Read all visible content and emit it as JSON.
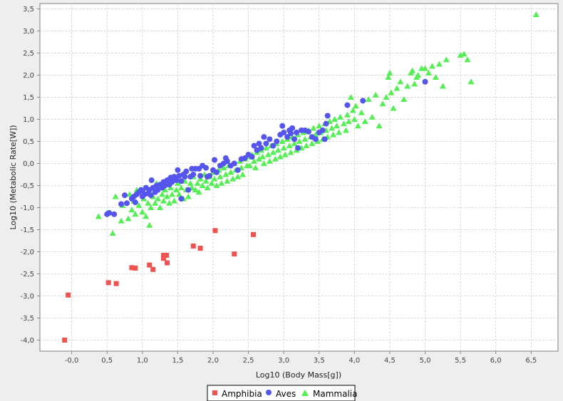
{
  "chart_data": {
    "type": "scatter",
    "xlabel": "Log10 (Body Mass[g])",
    "ylabel": "Log10 (Metabolic Rate[W])",
    "xlim": [
      -0.45,
      6.88
    ],
    "ylim": [
      -4.25,
      3.62
    ],
    "x_ticks": [
      "-0,0",
      "0,5",
      "1,0",
      "1,5",
      "2,0",
      "2,5",
      "3,0",
      "3,5",
      "4,0",
      "4,5",
      "5,0",
      "5,5",
      "6,0",
      "6,5"
    ],
    "x_tick_values": [
      0,
      0.5,
      1,
      1.5,
      2,
      2.5,
      3,
      3.5,
      4,
      4.5,
      5,
      5.5,
      6,
      6.5
    ],
    "y_ticks": [
      "-4,0",
      "-3,5",
      "-3,0",
      "-2,5",
      "-2,0",
      "-1,5",
      "-1,0",
      "-0,5",
      "0,0",
      "0,5",
      "1,0",
      "1,5",
      "2,0",
      "2,5",
      "3,0",
      "3,5"
    ],
    "y_tick_values": [
      -4,
      -3.5,
      -3,
      -2.5,
      -2,
      -1.5,
      -1,
      -0.5,
      0,
      0.5,
      1,
      1.5,
      2,
      2.5,
      3,
      3.5
    ],
    "grid": true,
    "legend_position": "bottom",
    "series": [
      {
        "name": "Amphibia",
        "marker": "square",
        "color": "#ef5350",
        "points": [
          [
            -0.1,
            -4.0
          ],
          [
            -0.05,
            -2.98
          ],
          [
            0.52,
            -2.7
          ],
          [
            0.63,
            -2.72
          ],
          [
            0.85,
            -2.36
          ],
          [
            0.9,
            -2.37
          ],
          [
            1.1,
            -2.3
          ],
          [
            1.15,
            -2.4
          ],
          [
            1.3,
            -2.08
          ],
          [
            1.3,
            -2.15
          ],
          [
            1.34,
            -2.08
          ],
          [
            1.35,
            -2.25
          ],
          [
            1.72,
            -1.87
          ],
          [
            1.82,
            -1.92
          ],
          [
            2.03,
            -1.52
          ],
          [
            2.3,
            -2.05
          ],
          [
            2.57,
            -1.61
          ]
        ]
      },
      {
        "name": "Aves",
        "marker": "circle",
        "color": "#5555ee",
        "points": [
          [
            0.5,
            -1.15
          ],
          [
            0.53,
            -1.12
          ],
          [
            0.6,
            -1.15
          ],
          [
            0.7,
            -0.92
          ],
          [
            0.75,
            -0.72
          ],
          [
            0.78,
            -0.9
          ],
          [
            0.85,
            -0.8
          ],
          [
            0.88,
            -0.75
          ],
          [
            0.9,
            -0.88
          ],
          [
            0.92,
            -0.7
          ],
          [
            0.95,
            -0.65
          ],
          [
            0.98,
            -0.6
          ],
          [
            1.0,
            -0.75
          ],
          [
            1.0,
            -0.62
          ],
          [
            1.03,
            -0.7
          ],
          [
            1.05,
            -0.55
          ],
          [
            1.08,
            -0.68
          ],
          [
            1.1,
            -0.6
          ],
          [
            1.12,
            -0.72
          ],
          [
            1.13,
            -0.38
          ],
          [
            1.15,
            -0.55
          ],
          [
            1.18,
            -0.65
          ],
          [
            1.2,
            -0.5
          ],
          [
            1.22,
            -0.6
          ],
          [
            1.25,
            -0.48
          ],
          [
            1.28,
            -0.55
          ],
          [
            1.3,
            -0.42
          ],
          [
            1.32,
            -0.5
          ],
          [
            1.35,
            -0.38
          ],
          [
            1.38,
            -0.48
          ],
          [
            1.4,
            -0.32
          ],
          [
            1.42,
            -0.42
          ],
          [
            1.45,
            -0.3
          ],
          [
            1.48,
            -0.38
          ],
          [
            1.5,
            -0.15
          ],
          [
            1.52,
            -0.28
          ],
          [
            1.55,
            -0.4
          ],
          [
            1.55,
            -0.8
          ],
          [
            1.58,
            -0.25
          ],
          [
            1.6,
            -0.3
          ],
          [
            1.62,
            -0.18
          ],
          [
            1.65,
            -0.6
          ],
          [
            1.68,
            -0.3
          ],
          [
            1.7,
            -0.12
          ],
          [
            1.72,
            -0.25
          ],
          [
            1.75,
            -0.12
          ],
          [
            1.8,
            -0.12
          ],
          [
            1.82,
            -0.28
          ],
          [
            1.85,
            -0.05
          ],
          [
            1.9,
            -0.1
          ],
          [
            1.92,
            -0.3
          ],
          [
            1.95,
            -0.28
          ],
          [
            2.0,
            -0.15
          ],
          [
            2.02,
            0.08
          ],
          [
            2.05,
            -0.2
          ],
          [
            2.1,
            -0.05
          ],
          [
            2.15,
            0.0
          ],
          [
            2.18,
            0.12
          ],
          [
            2.2,
            0.05
          ],
          [
            2.25,
            -0.05
          ],
          [
            2.3,
            0.0
          ],
          [
            2.35,
            -0.15
          ],
          [
            2.4,
            0.1
          ],
          [
            2.45,
            0.12
          ],
          [
            2.5,
            0.2
          ],
          [
            2.55,
            0.15
          ],
          [
            2.58,
            0.4
          ],
          [
            2.62,
            0.3
          ],
          [
            2.65,
            0.45
          ],
          [
            2.68,
            0.35
          ],
          [
            2.72,
            0.6
          ],
          [
            2.75,
            0.45
          ],
          [
            2.8,
            0.55
          ],
          [
            2.85,
            0.4
          ],
          [
            2.9,
            0.5
          ],
          [
            2.95,
            0.65
          ],
          [
            2.98,
            0.85
          ],
          [
            3.0,
            0.7
          ],
          [
            3.05,
            0.6
          ],
          [
            3.08,
            0.75
          ],
          [
            3.1,
            0.68
          ],
          [
            3.12,
            0.8
          ],
          [
            3.15,
            0.55
          ],
          [
            3.18,
            0.7
          ],
          [
            3.2,
            0.35
          ],
          [
            3.25,
            0.75
          ],
          [
            3.3,
            0.75
          ],
          [
            3.35,
            0.72
          ],
          [
            3.4,
            0.6
          ],
          [
            3.45,
            0.55
          ],
          [
            3.5,
            0.7
          ],
          [
            3.55,
            0.75
          ],
          [
            3.58,
            0.55
          ],
          [
            3.6,
            0.9
          ],
          [
            3.62,
            1.08
          ],
          [
            3.9,
            1.32
          ],
          [
            4.12,
            1.42
          ],
          [
            5.0,
            1.85
          ]
        ]
      },
      {
        "name": "Mammalia",
        "marker": "triangle",
        "color": "#55ee55",
        "points": [
          [
            0.38,
            -1.2
          ],
          [
            0.5,
            -1.12
          ],
          [
            0.58,
            -1.58
          ],
          [
            0.62,
            -0.75
          ],
          [
            0.7,
            -1.3
          ],
          [
            0.72,
            -0.95
          ],
          [
            0.8,
            -1.25
          ],
          [
            0.82,
            -0.7
          ],
          [
            0.85,
            -1.05
          ],
          [
            0.88,
            -0.85
          ],
          [
            0.9,
            -1.15
          ],
          [
            0.92,
            -0.6
          ],
          [
            0.95,
            -0.95
          ],
          [
            1.0,
            -1.1
          ],
          [
            1.02,
            -0.8
          ],
          [
            1.05,
            -1.2
          ],
          [
            1.08,
            -0.9
          ],
          [
            1.1,
            -1.4
          ],
          [
            1.12,
            -1.0
          ],
          [
            1.15,
            -0.75
          ],
          [
            1.18,
            -0.9
          ],
          [
            1.2,
            -0.45
          ],
          [
            1.22,
            -0.8
          ],
          [
            1.25,
            -1.0
          ],
          [
            1.28,
            -0.7
          ],
          [
            1.3,
            -0.85
          ],
          [
            1.32,
            -0.6
          ],
          [
            1.35,
            -0.75
          ],
          [
            1.38,
            -0.9
          ],
          [
            1.4,
            -0.55
          ],
          [
            1.42,
            -0.7
          ],
          [
            1.45,
            -0.85
          ],
          [
            1.48,
            -0.6
          ],
          [
            1.5,
            -0.45
          ],
          [
            1.52,
            -0.7
          ],
          [
            1.55,
            -0.55
          ],
          [
            1.58,
            -0.8
          ],
          [
            1.6,
            -0.4
          ],
          [
            1.62,
            -0.6
          ],
          [
            1.65,
            -0.75
          ],
          [
            1.68,
            -0.45
          ],
          [
            1.7,
            -0.55
          ],
          [
            1.72,
            -0.3
          ],
          [
            1.75,
            -0.6
          ],
          [
            1.78,
            -0.45
          ],
          [
            1.8,
            -0.65
          ],
          [
            1.82,
            -0.35
          ],
          [
            1.85,
            -0.5
          ],
          [
            1.88,
            -0.25
          ],
          [
            1.9,
            -0.4
          ],
          [
            1.92,
            -0.55
          ],
          [
            1.95,
            -0.3
          ],
          [
            1.98,
            -0.45
          ],
          [
            2.0,
            -0.2
          ],
          [
            2.02,
            -0.35
          ],
          [
            2.05,
            -0.5
          ],
          [
            2.08,
            -0.15
          ],
          [
            2.1,
            -0.3
          ],
          [
            2.12,
            -0.45
          ],
          [
            2.15,
            -0.1
          ],
          [
            2.18,
            -0.25
          ],
          [
            2.2,
            -0.4
          ],
          [
            2.22,
            -0.05
          ],
          [
            2.25,
            -0.2
          ],
          [
            2.28,
            -0.35
          ],
          [
            2.3,
            0.0
          ],
          [
            2.32,
            -0.15
          ],
          [
            2.35,
            -0.3
          ],
          [
            2.38,
            0.05
          ],
          [
            2.4,
            -0.1
          ],
          [
            2.42,
            -0.25
          ],
          [
            2.45,
            0.1
          ],
          [
            2.48,
            -0.05
          ],
          [
            2.5,
            0.15
          ],
          [
            2.52,
            -0.05
          ],
          [
            2.55,
            0.2
          ],
          [
            2.58,
            0.05
          ],
          [
            2.6,
            -0.1
          ],
          [
            2.62,
            0.25
          ],
          [
            2.65,
            0.1
          ],
          [
            2.68,
            0.3
          ],
          [
            2.7,
            0.15
          ],
          [
            2.72,
            0.0
          ],
          [
            2.75,
            0.35
          ],
          [
            2.78,
            0.2
          ],
          [
            2.8,
            0.05
          ],
          [
            2.82,
            0.4
          ],
          [
            2.85,
            0.25
          ],
          [
            2.88,
            0.1
          ],
          [
            2.9,
            0.45
          ],
          [
            2.92,
            0.3
          ],
          [
            2.95,
            0.15
          ],
          [
            2.98,
            0.5
          ],
          [
            3.0,
            0.35
          ],
          [
            3.02,
            0.2
          ],
          [
            3.05,
            0.55
          ],
          [
            3.08,
            0.4
          ],
          [
            3.1,
            0.25
          ],
          [
            3.12,
            0.6
          ],
          [
            3.15,
            0.45
          ],
          [
            3.18,
            0.3
          ],
          [
            3.2,
            0.65
          ],
          [
            3.22,
            0.5
          ],
          [
            3.25,
            0.35
          ],
          [
            3.28,
            0.7
          ],
          [
            3.3,
            0.55
          ],
          [
            3.32,
            0.4
          ],
          [
            3.35,
            0.75
          ],
          [
            3.38,
            0.6
          ],
          [
            3.4,
            0.45
          ],
          [
            3.42,
            0.8
          ],
          [
            3.45,
            0.65
          ],
          [
            3.48,
            0.5
          ],
          [
            3.5,
            0.85
          ],
          [
            3.52,
            0.7
          ],
          [
            3.55,
            0.55
          ],
          [
            3.58,
            0.9
          ],
          [
            3.6,
            0.75
          ],
          [
            3.62,
            0.6
          ],
          [
            3.65,
            0.95
          ],
          [
            3.68,
            0.8
          ],
          [
            3.7,
            0.65
          ],
          [
            3.72,
            1.0
          ],
          [
            3.75,
            0.85
          ],
          [
            3.78,
            0.7
          ],
          [
            3.8,
            1.05
          ],
          [
            3.85,
            0.9
          ],
          [
            3.88,
            0.75
          ],
          [
            3.9,
            1.1
          ],
          [
            3.92,
            0.95
          ],
          [
            3.95,
            1.5
          ],
          [
            3.98,
            1.2
          ],
          [
            4.0,
            1.0
          ],
          [
            4.02,
            1.3
          ],
          [
            4.05,
            0.85
          ],
          [
            4.1,
            1.15
          ],
          [
            4.15,
            0.95
          ],
          [
            4.2,
            1.45
          ],
          [
            4.25,
            1.05
          ],
          [
            4.3,
            1.55
          ],
          [
            4.35,
            0.85
          ],
          [
            4.4,
            1.35
          ],
          [
            4.45,
            1.5
          ],
          [
            4.48,
            1.95
          ],
          [
            4.5,
            2.05
          ],
          [
            4.52,
            1.6
          ],
          [
            4.55,
            1.25
          ],
          [
            4.6,
            1.7
          ],
          [
            4.65,
            1.85
          ],
          [
            4.7,
            1.45
          ],
          [
            4.75,
            1.75
          ],
          [
            4.8,
            2.05
          ],
          [
            4.82,
            2.1
          ],
          [
            4.85,
            1.8
          ],
          [
            4.88,
            1.95
          ],
          [
            4.9,
            2.0
          ],
          [
            4.95,
            2.15
          ],
          [
            5.0,
            2.15
          ],
          [
            5.05,
            2.05
          ],
          [
            5.1,
            2.2
          ],
          [
            5.15,
            1.95
          ],
          [
            5.2,
            2.25
          ],
          [
            5.25,
            1.75
          ],
          [
            5.3,
            2.35
          ],
          [
            5.5,
            2.45
          ],
          [
            5.55,
            2.48
          ],
          [
            5.6,
            2.35
          ],
          [
            5.65,
            1.85
          ],
          [
            6.57,
            3.37
          ]
        ]
      }
    ]
  }
}
